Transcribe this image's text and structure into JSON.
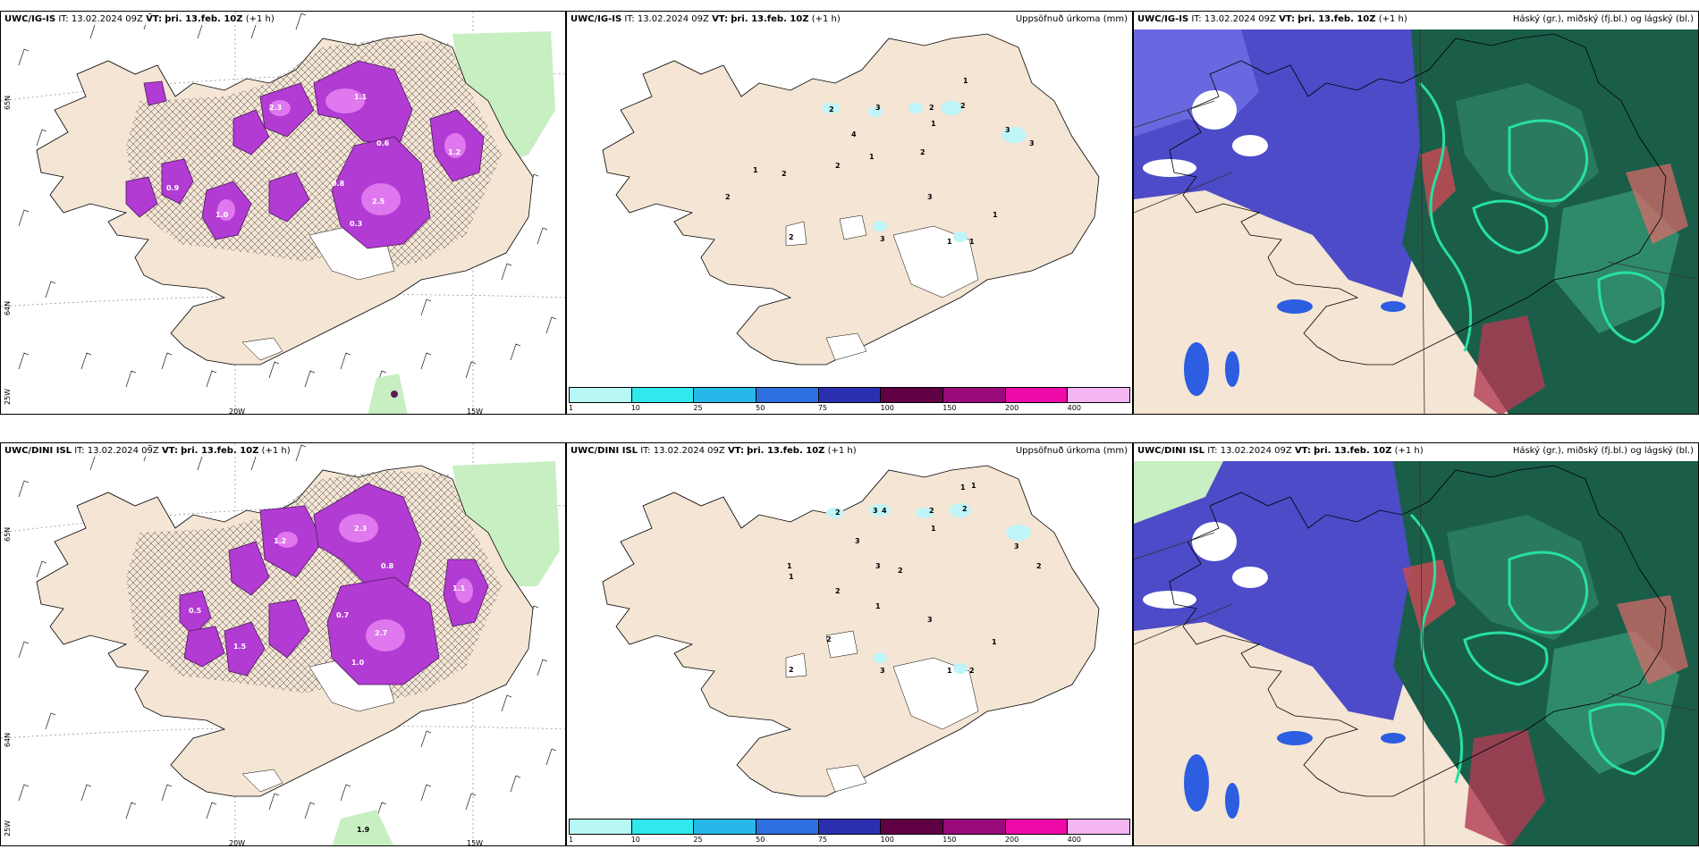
{
  "rows": [
    {
      "model": "UWC/IG-IS",
      "panels": [
        {
          "it_label": "IT:",
          "it_value": "13.02.2024 09Z",
          "vt_label": "VT:",
          "vt_value": "þri. 13.feb. 10Z",
          "lead": "(+1 h)",
          "title": ""
        },
        {
          "it_label": "IT:",
          "it_value": "13.02.2024 09Z",
          "vt_label": "VT:",
          "vt_value": "þri. 13.feb. 10Z",
          "lead": "(+1 h)",
          "title": "Uppsöfnuð úrkoma (mm)"
        },
        {
          "it_label": "IT:",
          "it_value": "13.02.2024 09Z",
          "vt_label": "VT:",
          "vt_value": "þri. 13.feb. 10Z",
          "lead": "(+1 h)",
          "title": "Háský (gr.), miðský (fj.bl.) og lágský (bl.)"
        }
      ],
      "axis": {
        "lat_top": "65N",
        "lat_bottom": "64N",
        "lat_corner": "25W",
        "lon_left": "20W",
        "lon_right": "15W"
      }
    },
    {
      "model": "UWC/DINI ISL",
      "panels": [
        {
          "it_label": "IT:",
          "it_value": "13.02.2024 09Z",
          "vt_label": "VT:",
          "vt_value": "þri. 13.feb. 10Z",
          "lead": "(+1 h)",
          "title": ""
        },
        {
          "it_label": "IT:",
          "it_value": "13.02.2024 09Z",
          "vt_label": "VT:",
          "vt_value": "þri. 13.feb. 10Z",
          "lead": "(+1 h)",
          "title": "Uppsöfnuð úrkoma (mm)"
        },
        {
          "it_label": "IT:",
          "it_value": "13.02.2024 09Z",
          "vt_label": "VT:",
          "vt_value": "þri. 13.feb. 10Z",
          "lead": "(+1 h)",
          "title": "Háský (gr.), miðský (fj.bl.) og lágský (bl.)"
        }
      ],
      "axis": {
        "lat_top": "65N",
        "lat_bottom": "64N",
        "lat_corner": "25W",
        "lon_left": "20W",
        "lon_right": "15W"
      }
    }
  ],
  "colorbar": {
    "ticks": [
      "1",
      "10",
      "25",
      "50",
      "75",
      "100",
      "150",
      "200",
      "400"
    ],
    "colors": [
      "#b7f7f5",
      "#2fe9ee",
      "#27b8ea",
      "#2e6fe0",
      "#2a2fb2",
      "#5f0045",
      "#9b0a7a",
      "#ee0aa8",
      "#f3b6f2"
    ]
  },
  "colors": {
    "land": "#f4e5d4",
    "coast": "#000000",
    "sea": "#ffffff",
    "snow_magenta": "#b23bd3",
    "snow_magenta_light": "#e47ff2",
    "precip_cyan": "#bff5f8",
    "high_cloud_green": "#1a5e4a",
    "mid_cloud_blue": "#4d4bc8",
    "low_cloud_red": "#c44a55",
    "teal_line": "#27e0a3"
  },
  "snow_labels": [
    "1.1",
    "2.5",
    "2.3",
    "0.6",
    "0.8",
    "1.0",
    "0.3",
    "0.9",
    "1.2",
    "2.7",
    "1.5"
  ],
  "precip_labels": [
    "1",
    "2",
    "3",
    "4"
  ]
}
